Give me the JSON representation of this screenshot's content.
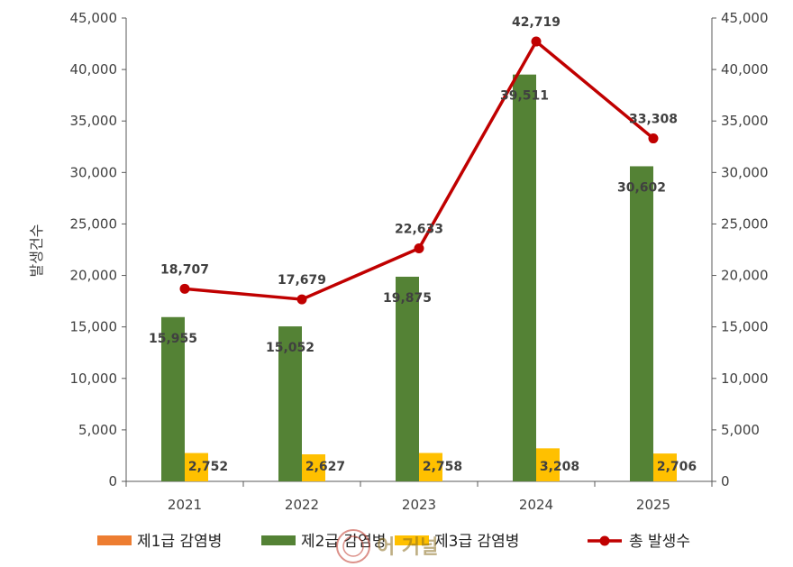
{
  "chart_data": {
    "type": "bar",
    "categories": [
      "2021",
      "2022",
      "2023",
      "2024",
      "2025"
    ],
    "series": [
      {
        "name": "제1급 감염병",
        "type": "bar",
        "values": [
          0,
          0,
          0,
          0,
          0
        ]
      },
      {
        "name": "제2급 감염병",
        "type": "bar",
        "values": [
          15955,
          15052,
          19875,
          39511,
          30602
        ]
      },
      {
        "name": "제3급 감염병",
        "type": "bar",
        "values": [
          2752,
          2627,
          2758,
          3208,
          2706
        ]
      },
      {
        "name": "총 발생수",
        "type": "line",
        "values": [
          18707,
          17679,
          22633,
          42719,
          33308
        ]
      }
    ],
    "data_labels": {
      "series2": [
        "15,955",
        "15,052",
        "19,875",
        "39,511",
        "30,602"
      ],
      "series3": [
        "2,752",
        "2,627",
        "2,758",
        "3,208",
        "2,706"
      ],
      "total": [
        "18,707",
        "17,679",
        "22,633",
        "42,719",
        "33,308"
      ]
    },
    "ylabel": "발생건수",
    "ylim": [
      0,
      45000
    ],
    "yticks": [
      "0",
      "5,000",
      "10,000",
      "15,000",
      "20,000",
      "25,000",
      "30,000",
      "35,000",
      "40,000",
      "45,000"
    ],
    "secondary_ylim": [
      0,
      45000
    ],
    "grid": false,
    "legend": "bottom",
    "colors": {
      "series1": "#ED7D31",
      "series2": "#548235",
      "series3": "#FFC000",
      "total": "#C00000",
      "axis": "#595959"
    }
  },
  "watermark": {
    "text": "어 거널"
  }
}
